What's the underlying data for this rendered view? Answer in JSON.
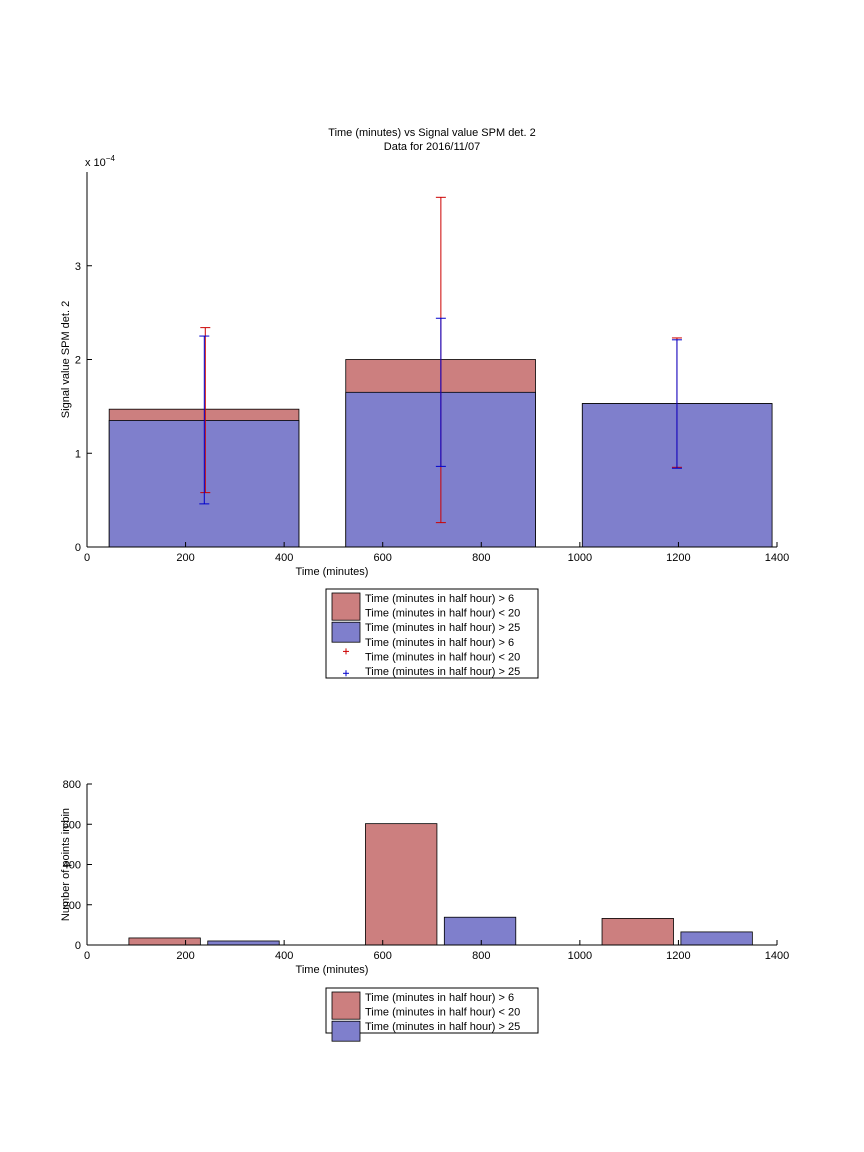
{
  "title": "Time (minutes) vs Signal value SPM det. 2",
  "subtitle": "Data for 2016/11/07",
  "chart_data": [
    {
      "type": "bar",
      "xlabel": "Time (minutes)",
      "ylabel": "Signal value SPM det. 2",
      "y_exponent_base": "x 10",
      "y_exponent_power": "−4",
      "xlim": [
        0,
        1400
      ],
      "ylim": [
        0,
        4
      ],
      "xticks": [
        0,
        200,
        400,
        600,
        800,
        1000,
        1200,
        1400
      ],
      "yticks": [
        0,
        1,
        2,
        3
      ],
      "series": [
        {
          "name": "Time (minutes in half hour) > 6\nTime (minutes in half hour) < 20",
          "color": "#cc7f7f",
          "bars": [
            {
              "x0": 45,
              "x1": 430,
              "value": 1.47
            },
            {
              "x0": 525,
              "x1": 910,
              "value": 2.0
            },
            {
              "x0": 1005,
              "x1": 1390,
              "value": 1.53
            }
          ],
          "errorbars": [
            {
              "x": 240,
              "low": 0.58,
              "high": 2.34
            },
            {
              "x": 718,
              "low": 0.26,
              "high": 3.73
            },
            {
              "x": 1197,
              "low": 0.85,
              "high": 2.23
            }
          ],
          "errorbar_color": "#cc0000"
        },
        {
          "name": "Time (minutes in half hour) > 25",
          "color": "#7f7fcc",
          "bars": [
            {
              "x0": 45,
              "x1": 430,
              "value": 1.35
            },
            {
              "x0": 525,
              "x1": 910,
              "value": 1.65
            },
            {
              "x0": 1005,
              "x1": 1390,
              "value": 1.53
            }
          ],
          "errorbars": [
            {
              "x": 238,
              "low": 0.46,
              "high": 2.25
            },
            {
              "x": 718,
              "low": 0.86,
              "high": 2.44
            },
            {
              "x": 1197,
              "low": 0.84,
              "high": 2.21
            }
          ],
          "errorbar_color": "#0000cc"
        }
      ],
      "legend": {
        "placement": "below",
        "entries": [
          {
            "kind": "patch",
            "color": "#cc7f7f",
            "lines": [
              "Time (minutes in half hour) > 6",
              "Time (minutes in half hour) < 20"
            ]
          },
          {
            "kind": "patch",
            "color": "#7f7fcc",
            "lines": [
              "Time (minutes in half hour) > 25"
            ]
          },
          {
            "kind": "marker",
            "color": "#cc0000",
            "lines": [
              "Time (minutes in half hour) > 6",
              "Time (minutes in half hour) < 20"
            ]
          },
          {
            "kind": "marker",
            "color": "#0000cc",
            "lines": [
              "Time (minutes in half hour) > 25"
            ]
          }
        ]
      }
    },
    {
      "type": "bar",
      "xlabel": "Time (minutes)",
      "ylabel": "Number of points in bin",
      "xlim": [
        0,
        1400
      ],
      "ylim": [
        0,
        800
      ],
      "xticks": [
        0,
        200,
        400,
        600,
        800,
        1000,
        1200,
        1400
      ],
      "yticks": [
        0,
        200,
        400,
        600,
        800
      ],
      "series": [
        {
          "name": "Time (minutes in half hour) > 6\nTime (minutes in half hour) < 20",
          "color": "#cc7f7f",
          "bars": [
            {
              "x0": 85,
              "x1": 230,
              "value": 35
            },
            {
              "x0": 565,
              "x1": 710,
              "value": 603
            },
            {
              "x0": 1045,
              "x1": 1190,
              "value": 132
            }
          ]
        },
        {
          "name": "Time (minutes in half hour) > 25",
          "color": "#7f7fcc",
          "bars": [
            {
              "x0": 245,
              "x1": 390,
              "value": 20
            },
            {
              "x0": 725,
              "x1": 870,
              "value": 138
            },
            {
              "x0": 1205,
              "x1": 1350,
              "value": 65
            }
          ]
        }
      ],
      "legend": {
        "placement": "below",
        "entries": [
          {
            "kind": "patch",
            "color": "#cc7f7f",
            "lines": [
              "Time (minutes in half hour) > 6",
              "Time (minutes in half hour) < 20"
            ]
          },
          {
            "kind": "patch",
            "color": "#7f7fcc",
            "lines": [
              "Time (minutes in half hour) > 25"
            ]
          }
        ]
      }
    }
  ]
}
